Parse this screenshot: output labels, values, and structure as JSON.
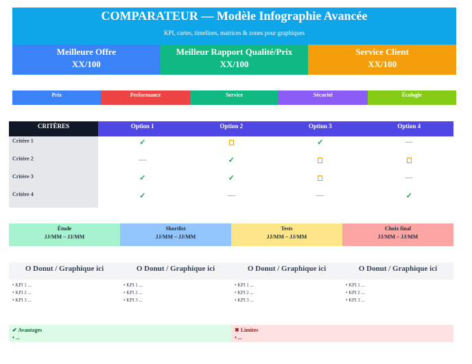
{
  "header": {
    "title": "COMPARATEUR — Modèle Infographie Avancée",
    "subtitle": "KPI, cartes, timelines, matrices & zones pour graphiques"
  },
  "kpis": [
    {
      "label": "Meilleure Offre",
      "value": "XX/100",
      "color": "#3b82f6"
    },
    {
      "label": "Meilleur Rapport Qualité/Prix",
      "value": "XX/100",
      "color": "#10b981"
    },
    {
      "label": "Service Client",
      "value": "XX/100",
      "color": "#f59e0b"
    }
  ],
  "categories": [
    {
      "label": "Prix",
      "color": "#3b82f6"
    },
    {
      "label": "Performance",
      "color": "#ef4444"
    },
    {
      "label": "Service",
      "color": "#10b981"
    },
    {
      "label": "Sécurité",
      "color": "#8b5cf6"
    },
    {
      "label": "Écologie",
      "color": "#84cc16"
    }
  ],
  "table": {
    "headers": [
      "CRITÈRES",
      "Option 1",
      "Option 2",
      "Option 3",
      "Option 4"
    ],
    "rows": [
      {
        "label": "Critère 1",
        "cells": [
          "check",
          "pending",
          "check",
          "dash"
        ]
      },
      {
        "label": "Critère 2",
        "cells": [
          "dash",
          "check",
          "pending",
          "pending"
        ]
      },
      {
        "label": "Critère 3",
        "cells": [
          "check",
          "check",
          "pending",
          "dash"
        ]
      },
      {
        "label": "Critère 4",
        "cells": [
          "check",
          "dash",
          "dash",
          "check"
        ]
      }
    ],
    "symbols": {
      "check": "✓",
      "dash": "—"
    }
  },
  "timeline": [
    {
      "phase": "Étude",
      "dates": "JJ/MM – JJ/MM",
      "color": "#a7f3d0"
    },
    {
      "phase": "Shortlist",
      "dates": "JJ/MM – JJ/MM",
      "color": "#93c5fd"
    },
    {
      "phase": "Tests",
      "dates": "JJ/MM – JJ/MM",
      "color": "#fde68a"
    },
    {
      "phase": "Choix final",
      "dates": "JJ/MM – JJ/MM",
      "color": "#fca5a5"
    }
  ],
  "donuts": [
    {
      "title": "O Donut / Graphique ici",
      "kpis": [
        "• KPI 1 ...",
        "• KPI 2 ...",
        "• KPI 3 ..."
      ]
    },
    {
      "title": "O Donut / Graphique ici",
      "kpis": [
        "• KPI 1 ...",
        "• KPI 2 ...",
        "• KPI 3 ..."
      ]
    },
    {
      "title": "O Donut / Graphique ici",
      "kpis": [
        "• KPI 1 ...",
        "• KPI 2 ...",
        "• KPI 3 ..."
      ]
    },
    {
      "title": "O Donut / Graphique ici",
      "kpis": [
        "• KPI 1 ...",
        "• KPI 2 ...",
        "• KPI 3 ..."
      ]
    }
  ],
  "pros": {
    "icon": "✔",
    "title": "Avantages",
    "item": "• ..."
  },
  "cons": {
    "icon": "✖",
    "title": "Limites",
    "item": "• ..."
  }
}
